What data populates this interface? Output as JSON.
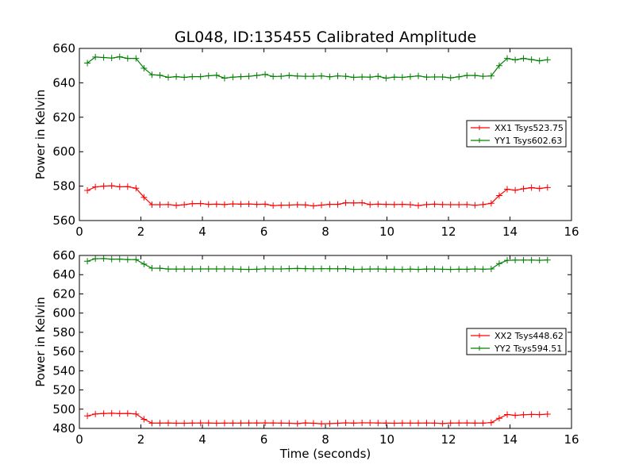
{
  "chart_data": [
    {
      "type": "line",
      "title": "GL048, ID:135455 Calibrated Amplitude",
      "xlabel": "",
      "ylabel": "Power in Kelvin",
      "xlim": [
        0,
        16
      ],
      "ylim": [
        560,
        660
      ],
      "xticks": [
        0,
        2,
        4,
        6,
        8,
        10,
        12,
        14,
        16
      ],
      "yticks": [
        560,
        580,
        600,
        620,
        640,
        660
      ],
      "legend_position": "center-right",
      "x": [
        0.26,
        0.52,
        0.79,
        1.05,
        1.31,
        1.57,
        1.84,
        2.1,
        2.36,
        2.62,
        2.89,
        3.15,
        3.41,
        3.67,
        3.94,
        4.2,
        4.46,
        4.72,
        4.99,
        5.25,
        5.51,
        5.77,
        6.04,
        6.3,
        6.56,
        6.82,
        7.09,
        7.35,
        7.61,
        7.87,
        8.14,
        8.4,
        8.66,
        8.92,
        9.19,
        9.45,
        9.71,
        9.97,
        10.24,
        10.5,
        10.76,
        11.02,
        11.29,
        11.55,
        11.81,
        12.07,
        12.34,
        12.6,
        12.86,
        13.12,
        13.39,
        13.65,
        13.91,
        14.17,
        14.44,
        14.7,
        14.96,
        15.22
      ],
      "series": [
        {
          "name": "XX1 Tsys523.75",
          "color": "#ff0000",
          "values": [
            577.5,
            579.5,
            580.0,
            580.2,
            579.6,
            579.7,
            578.8,
            573.5,
            569.2,
            569.2,
            569.3,
            568.8,
            569.2,
            569.8,
            569.9,
            569.4,
            569.5,
            569.3,
            569.7,
            569.5,
            569.6,
            569.4,
            569.5,
            568.7,
            568.9,
            569.0,
            569.2,
            569.1,
            568.5,
            569.0,
            569.4,
            569.4,
            570.3,
            570.2,
            570.3,
            569.3,
            569.5,
            569.4,
            569.3,
            569.4,
            569.2,
            568.7,
            569.3,
            569.5,
            569.3,
            569.2,
            569.2,
            569.3,
            568.9,
            569.3,
            570.0,
            574.5,
            578.2,
            577.6,
            578.5,
            579.1,
            578.6,
            579.2
          ]
        },
        {
          "name": "YY1 Tsys602.63",
          "color": "#008000",
          "values": [
            651.5,
            655.0,
            654.7,
            654.4,
            655.1,
            654.2,
            654.2,
            648.5,
            644.7,
            644.4,
            643.2,
            643.6,
            643.2,
            643.6,
            643.6,
            644.1,
            644.4,
            642.7,
            643.3,
            643.6,
            643.8,
            644.3,
            644.9,
            643.7,
            643.8,
            644.3,
            643.9,
            643.8,
            643.8,
            644.0,
            643.5,
            644.0,
            643.8,
            643.2,
            643.4,
            643.3,
            643.8,
            642.7,
            643.3,
            643.2,
            643.6,
            644.0,
            643.3,
            643.4,
            643.4,
            642.9,
            643.5,
            644.3,
            644.3,
            643.8,
            644.0,
            650.0,
            654.2,
            653.3,
            654.2,
            653.5,
            652.8,
            653.4
          ]
        }
      ]
    },
    {
      "type": "line",
      "title": "",
      "xlabel": "Time (seconds)",
      "ylabel": "Power in Kelvin",
      "xlim": [
        0,
        16
      ],
      "ylim": [
        480,
        660
      ],
      "xticks": [
        0,
        2,
        4,
        6,
        8,
        10,
        12,
        14,
        16
      ],
      "yticks": [
        480,
        500,
        520,
        540,
        560,
        580,
        600,
        620,
        640,
        660
      ],
      "legend_position": "center-right",
      "x": [
        0.26,
        0.52,
        0.79,
        1.05,
        1.31,
        1.57,
        1.84,
        2.1,
        2.36,
        2.62,
        2.89,
        3.15,
        3.41,
        3.67,
        3.94,
        4.2,
        4.46,
        4.72,
        4.99,
        5.25,
        5.51,
        5.77,
        6.04,
        6.3,
        6.56,
        6.82,
        7.09,
        7.35,
        7.61,
        7.87,
        8.14,
        8.4,
        8.66,
        8.92,
        9.19,
        9.45,
        9.71,
        9.97,
        10.24,
        10.5,
        10.76,
        11.02,
        11.29,
        11.55,
        11.81,
        12.07,
        12.34,
        12.6,
        12.86,
        13.12,
        13.39,
        13.65,
        13.91,
        14.17,
        14.44,
        14.7,
        14.96,
        15.22
      ],
      "series": [
        {
          "name": "XX2 Tsys448.62",
          "color": "#ff0000",
          "values": [
            493.0,
            495.0,
            495.5,
            495.8,
            495.4,
            495.6,
            495.0,
            489.5,
            485.5,
            485.5,
            485.6,
            485.4,
            485.4,
            485.5,
            485.6,
            485.6,
            485.4,
            485.5,
            485.5,
            485.5,
            485.6,
            485.6,
            485.7,
            485.6,
            485.5,
            485.4,
            485.0,
            485.7,
            485.4,
            484.9,
            485.0,
            485.4,
            485.8,
            485.5,
            485.8,
            485.8,
            485.6,
            485.5,
            485.4,
            485.5,
            485.5,
            485.5,
            485.6,
            485.5,
            485.1,
            485.5,
            485.6,
            485.7,
            485.5,
            485.5,
            486.0,
            490.5,
            494.5,
            493.5,
            494.2,
            494.6,
            494.4,
            494.9
          ]
        },
        {
          "name": "YY2 Tsys594.51",
          "color": "#008000",
          "values": [
            654.0,
            656.6,
            656.8,
            656.1,
            656.2,
            655.7,
            655.7,
            651.0,
            646.8,
            646.7,
            645.9,
            645.9,
            645.9,
            645.9,
            646.0,
            646.0,
            646.0,
            646.0,
            646.0,
            645.6,
            645.5,
            645.7,
            646.1,
            646.0,
            646.0,
            646.3,
            646.5,
            646.3,
            646.1,
            646.2,
            646.2,
            646.1,
            646.3,
            645.5,
            645.6,
            645.9,
            646.0,
            645.6,
            645.6,
            645.5,
            645.8,
            645.5,
            645.9,
            645.9,
            645.6,
            645.5,
            645.7,
            645.6,
            646.0,
            645.7,
            646.0,
            651.5,
            654.9,
            655.1,
            655.2,
            655.2,
            655.0,
            655.3
          ]
        }
      ]
    }
  ]
}
